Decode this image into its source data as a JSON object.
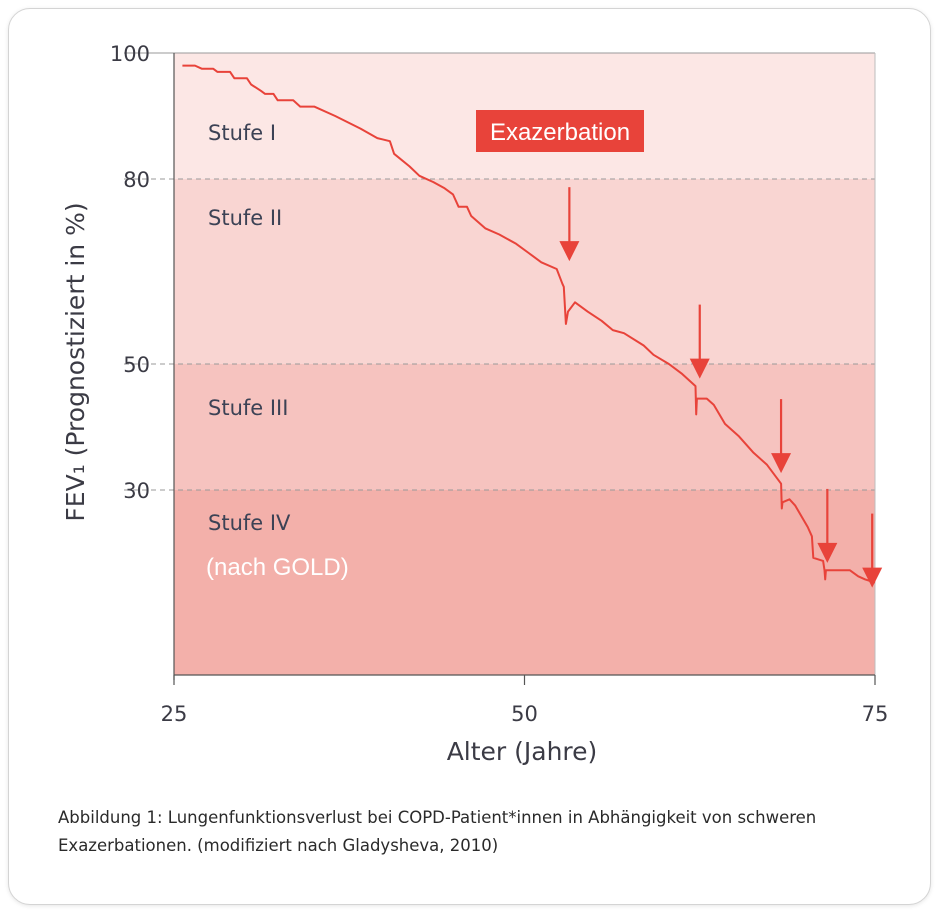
{
  "caption": {
    "line1": "Abbildung 1: Lungenfunktionsverlust bei COPD-Patient*innen in Abhängigkeit von schweren",
    "line2": "Exazerbationen. (modifiziert nach Gladysheva, 2010)"
  },
  "chart_data": {
    "type": "line",
    "title": "",
    "xlabel": "Alter (Jahre)",
    "ylabel": "FEV₁ (Prognostiziert in %)",
    "xlim": [
      25,
      75
    ],
    "x_ticks": [
      25,
      50,
      75
    ],
    "y_ticks": [
      100,
      80,
      50,
      30
    ],
    "y_scale": "nonlinear (tick-to-tick piecewise)",
    "grid": "dashed horizontal lines at 80, 50 and 30",
    "zones": [
      {
        "label": "Stufe I",
        "from": 80,
        "to": 100,
        "color": "#fce7e5"
      },
      {
        "label": "Stufe II",
        "from": 50,
        "to": 80,
        "color": "#f9d5d2"
      },
      {
        "label": "Stufe III",
        "from": 30,
        "to": 50,
        "color": "#f6c3bf"
      },
      {
        "label": "Stufe IV",
        "from": 0,
        "to": 30,
        "color": "#f3b0aa"
      }
    ],
    "zone_note": "(nach GOLD)",
    "annotation": "Exazerbation",
    "line_color": "#e8433a",
    "series": [
      {
        "values": [
          [
            25.6,
            98
          ],
          [
            26.5,
            98
          ],
          [
            27,
            97.5
          ],
          [
            27.8,
            97.5
          ],
          [
            28.1,
            97
          ],
          [
            29,
            97
          ],
          [
            29.3,
            96
          ],
          [
            30.2,
            96
          ],
          [
            30.5,
            95
          ],
          [
            31.2,
            94
          ],
          [
            31.5,
            93.5
          ],
          [
            32.1,
            93.5
          ],
          [
            32.4,
            92.5
          ],
          [
            33.5,
            92.5
          ],
          [
            34,
            91.5
          ],
          [
            35,
            91.5
          ],
          [
            36.5,
            90
          ],
          [
            38.3,
            88
          ],
          [
            39.5,
            86.5
          ],
          [
            40.4,
            86
          ],
          [
            40.7,
            84
          ],
          [
            41.8,
            82
          ],
          [
            42.5,
            80.5
          ],
          [
            43.5,
            79.5
          ],
          [
            44.3,
            78.5
          ],
          [
            44.9,
            77.5
          ],
          [
            45.3,
            75.5
          ],
          [
            45.9,
            75.5
          ],
          [
            46.2,
            74
          ],
          [
            47.2,
            72
          ],
          [
            48.2,
            71
          ],
          [
            49.4,
            69.5
          ],
          [
            50.3,
            68
          ],
          [
            51.2,
            66.5
          ],
          [
            52.3,
            65.4
          ],
          [
            52.7,
            63
          ],
          [
            52.8,
            62.5
          ],
          [
            52.95,
            56.5
          ],
          [
            53.1,
            58.5
          ],
          [
            53.6,
            60
          ],
          [
            54.5,
            58.5
          ],
          [
            55.5,
            57
          ],
          [
            56.3,
            55.5
          ],
          [
            57.1,
            55
          ],
          [
            58.5,
            53
          ],
          [
            59.2,
            51.5
          ],
          [
            60.3,
            50
          ],
          [
            61.2,
            48.5
          ],
          [
            62.2,
            46.5
          ],
          [
            62.25,
            42
          ],
          [
            62.3,
            44.5
          ],
          [
            63,
            44.5
          ],
          [
            63.5,
            43.5
          ],
          [
            64.3,
            40.5
          ],
          [
            65.3,
            38.5
          ],
          [
            66.3,
            36
          ],
          [
            67.3,
            34
          ],
          [
            68.3,
            31
          ],
          [
            68.35,
            27
          ],
          [
            68.4,
            28
          ],
          [
            68.9,
            28.5
          ],
          [
            69.3,
            27.5
          ],
          [
            70.2,
            24
          ],
          [
            70.5,
            22.5
          ],
          [
            70.6,
            19
          ],
          [
            71.3,
            18.5
          ],
          [
            71.4,
            17
          ],
          [
            71.45,
            15.5
          ],
          [
            71.5,
            17
          ],
          [
            72.5,
            17
          ],
          [
            73.2,
            17
          ],
          [
            73.8,
            16
          ],
          [
            74.3,
            15.5
          ],
          [
            75,
            15
          ]
        ]
      }
    ],
    "exacerbation_events": [
      {
        "x": 53.2,
        "y": 67
      },
      {
        "x": 62.5,
        "y": 48
      },
      {
        "x": 68.3,
        "y": 33
      },
      {
        "x": 71.6,
        "y": 18.5
      },
      {
        "x": 74.8,
        "y": 14.5
      }
    ]
  }
}
